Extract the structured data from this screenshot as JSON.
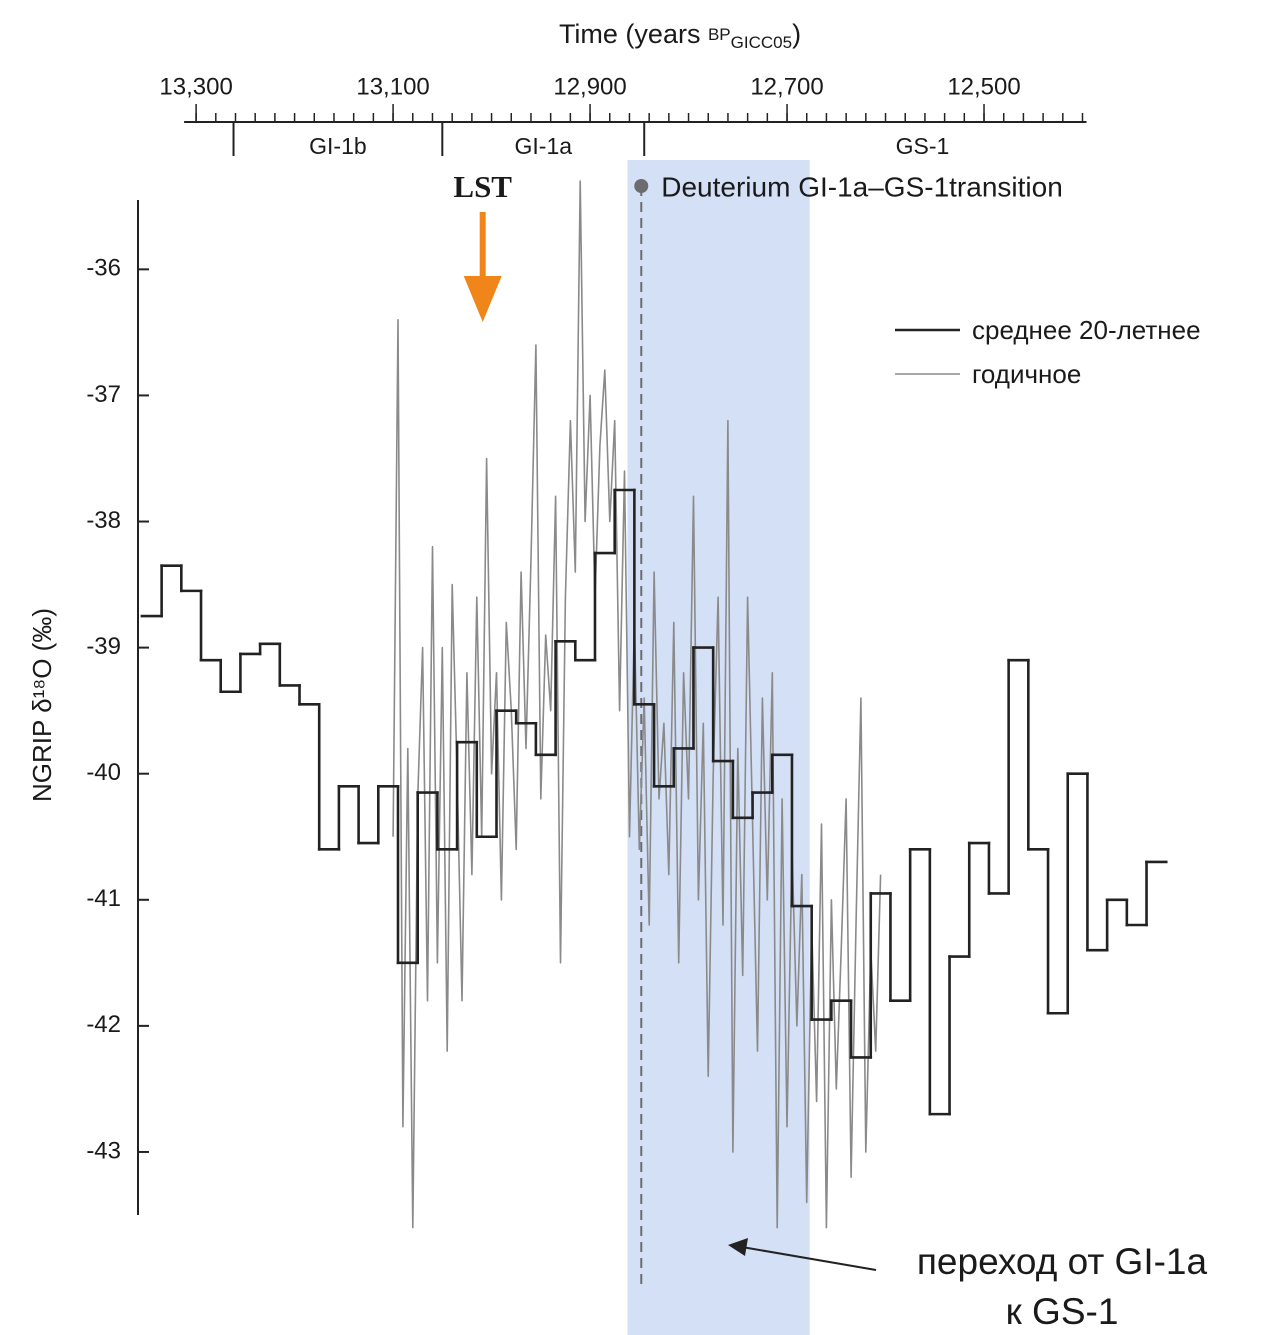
{
  "chart_data": {
    "type": "line",
    "x_label_parts": [
      "Time (years ",
      "BP",
      "GICC05",
      ")"
    ],
    "y_label": "NGRIP δ¹⁸O (‰)",
    "xlim": [
      13360,
      12300
    ],
    "ylim": [
      -43.5,
      -35.45
    ],
    "x_reversed": true,
    "xticks": [
      {
        "value": 13300,
        "label": "13,300"
      },
      {
        "value": 13100,
        "label": "13,100"
      },
      {
        "value": 12900,
        "label": "12,900"
      },
      {
        "value": 12700,
        "label": "12,700"
      },
      {
        "value": 12500,
        "label": "12,500"
      }
    ],
    "xminor_ticks": [
      13300,
      13280,
      13260,
      13240,
      13220,
      13200,
      13180,
      13160,
      13140,
      13120,
      13100,
      13080,
      13060,
      13040,
      13020,
      13000,
      12980,
      12960,
      12940,
      12920,
      12900,
      12880,
      12860,
      12840,
      12820,
      12800,
      12780,
      12760,
      12740,
      12720,
      12700,
      12680,
      12660,
      12640,
      12620,
      12600,
      12580,
      12560,
      12540,
      12520,
      12500,
      12480,
      12460,
      12440,
      12420,
      12400
    ],
    "yticks": [
      -43,
      -42,
      -41,
      -40,
      -39,
      -38,
      -37,
      -36
    ],
    "periods": [
      {
        "label": "GI-1b",
        "start": 13262,
        "end": 13050
      },
      {
        "label": "GI-1a",
        "start": 13050,
        "end": 12845
      },
      {
        "label": "GS-1",
        "start": 12845,
        "end": 12280
      }
    ],
    "highlight": {
      "start": 12862,
      "end": 12677,
      "color": "#cddbf4"
    },
    "transition": {
      "x": 12848,
      "label": "Deuterium GI-1a–GS-1transition",
      "color": "#6b6b70"
    },
    "lst": {
      "x": 13009,
      "label": "LST",
      "color": "#f0861a"
    },
    "note": {
      "lines": [
        "переход от GI-1a",
        "к GS-1"
      ]
    },
    "series": [
      {
        "name": "среднее 20-летнее",
        "color": "#222222",
        "step": true,
        "bins": [
          13355,
          13335,
          13315,
          13295,
          13275,
          13255,
          13235,
          13215,
          13195,
          13175,
          13155,
          13135,
          13115,
          13095,
          13075,
          13055,
          13035,
          13015,
          12995,
          12975,
          12955,
          12935,
          12915,
          12895,
          12875,
          12855,
          12835,
          12815,
          12795,
          12775,
          12755,
          12735,
          12715,
          12695,
          12675,
          12655,
          12635,
          12615,
          12595,
          12575,
          12555,
          12535,
          12515,
          12495,
          12475,
          12455,
          12435,
          12415,
          12395,
          12375,
          12355,
          12335,
          12315
        ],
        "values": [
          -38.75,
          -38.35,
          -38.55,
          -39.1,
          -39.35,
          -39.05,
          -38.97,
          -39.3,
          -39.45,
          -40.6,
          -40.1,
          -40.55,
          -40.1,
          -41.5,
          -40.15,
          -40.6,
          -39.75,
          -40.5,
          -39.5,
          -39.6,
          -39.85,
          -38.95,
          -39.1,
          -38.25,
          -37.75,
          -39.45,
          -40.1,
          -39.8,
          -39.0,
          -39.9,
          -40.35,
          -40.15,
          -39.85,
          -41.05,
          -41.95,
          -41.8,
          -42.25,
          -40.95,
          -41.8,
          -40.6,
          -42.7,
          -41.45,
          -40.55,
          -40.95,
          -39.1,
          -40.6,
          -41.9,
          -40.0,
          -41.4,
          -41.0,
          -41.2,
          -40.7
        ]
      },
      {
        "name": "годичное",
        "color": "#8a8a8a",
        "x": [
          13100,
          13095,
          13090,
          13085,
          13080,
          13075,
          13070,
          13065,
          13060,
          13055,
          13050,
          13045,
          13040,
          13035,
          13030,
          13025,
          13020,
          13015,
          13010,
          13005,
          13000,
          12995,
          12990,
          12985,
          12980,
          12975,
          12970,
          12965,
          12960,
          12955,
          12950,
          12945,
          12940,
          12935,
          12930,
          12925,
          12920,
          12915,
          12910,
          12905,
          12900,
          12895,
          12890,
          12885,
          12880,
          12875,
          12870,
          12865,
          12860,
          12855,
          12850,
          12845,
          12840,
          12835,
          12830,
          12825,
          12820,
          12815,
          12810,
          12805,
          12800,
          12795,
          12790,
          12785,
          12780,
          12775,
          12770,
          12765,
          12760,
          12755,
          12750,
          12745,
          12740,
          12735,
          12730,
          12725,
          12720,
          12715,
          12710,
          12705,
          12700,
          12695,
          12690,
          12685,
          12680,
          12675,
          12670,
          12665,
          12660,
          12655,
          12650,
          12645,
          12640,
          12635,
          12630,
          12625,
          12620,
          12615,
          12610,
          12605
        ],
        "values": [
          -40.5,
          -36.4,
          -42.8,
          -39.8,
          -43.6,
          -40.2,
          -39.0,
          -41.8,
          -38.2,
          -41.5,
          -39.0,
          -42.2,
          -38.5,
          -40.0,
          -41.8,
          -39.2,
          -40.8,
          -38.6,
          -40.5,
          -37.5,
          -40.0,
          -39.2,
          -41.0,
          -38.8,
          -39.5,
          -40.6,
          -38.4,
          -39.8,
          -38.3,
          -36.6,
          -40.2,
          -38.9,
          -39.5,
          -37.8,
          -41.5,
          -38.6,
          -37.2,
          -38.4,
          -35.3,
          -38.0,
          -37.0,
          -38.6,
          -37.4,
          -36.8,
          -38.0,
          -37.2,
          -39.5,
          -37.6,
          -40.5,
          -38.8,
          -40.6,
          -39.4,
          -41.2,
          -38.4,
          -40.2,
          -39.6,
          -40.8,
          -38.8,
          -41.5,
          -39.2,
          -40.2,
          -37.8,
          -41.0,
          -39.6,
          -42.4,
          -40.0,
          -38.6,
          -41.2,
          -37.2,
          -43.0,
          -39.8,
          -41.6,
          -38.6,
          -40.4,
          -42.2,
          -39.4,
          -41.0,
          -39.2,
          -43.6,
          -40.2,
          -42.8,
          -40.6,
          -42.0,
          -40.8,
          -43.4,
          -41.2,
          -42.6,
          -40.4,
          -43.6,
          -41.0,
          -42.5,
          -41.4,
          -40.2,
          -43.2,
          -41.2,
          -39.4,
          -43.0,
          -41.4,
          -42.2,
          -40.8
        ]
      }
    ]
  }
}
